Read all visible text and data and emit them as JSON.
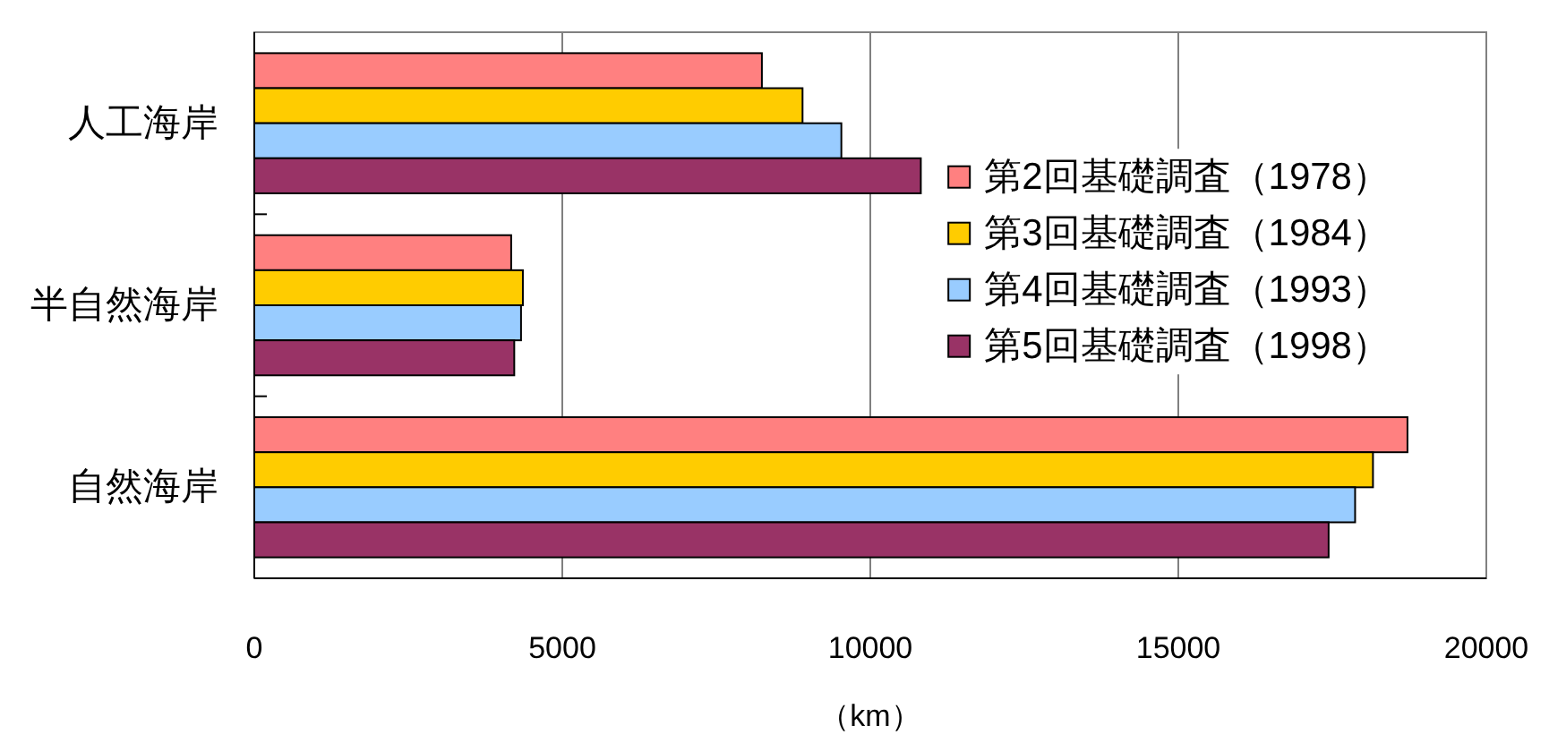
{
  "chart_data": {
    "type": "bar",
    "orientation": "horizontal",
    "categories": [
      "人工海岸",
      "半自然海岸",
      "自然海岸"
    ],
    "series": [
      {
        "name": "第2回基礎調査（1978）",
        "color": "#ff8080",
        "values": [
          8240,
          4170,
          18720
        ]
      },
      {
        "name": "第3回基礎調査（1984）",
        "color": "#ffcc00",
        "values": [
          8900,
          4360,
          18160
        ]
      },
      {
        "name": "第4回基礎調査（1993）",
        "color": "#99ccff",
        "values": [
          9530,
          4330,
          17870
        ]
      },
      {
        "name": "第5回基礎調査（1998）",
        "color": "#993366",
        "values": [
          10820,
          4220,
          17440
        ]
      }
    ],
    "xlabel": "（km）",
    "xlim": [
      0,
      20000
    ],
    "xticks": [
      0,
      5000,
      10000,
      15000,
      20000
    ],
    "grid": "x",
    "legend": "right"
  }
}
